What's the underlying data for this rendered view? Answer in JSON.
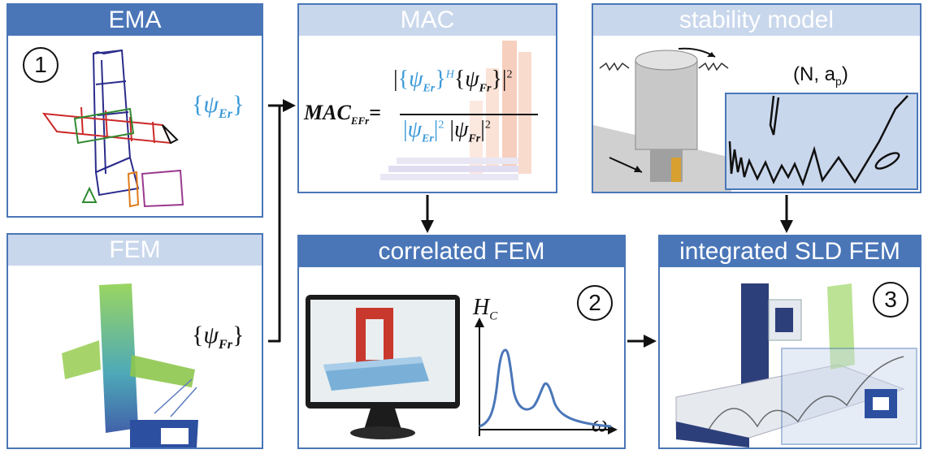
{
  "panels": {
    "ema": {
      "title": "EMA",
      "step": "1"
    },
    "fem": {
      "title": "FEM"
    },
    "mac": {
      "title": "MAC"
    },
    "stability": {
      "title": "stability model",
      "coords": "(N, a",
      "coords_sub": "p",
      "coords_end": ")"
    },
    "correlated": {
      "title": "correlated FEM",
      "step": "2"
    },
    "integrated": {
      "title": "integrated SLD FEM",
      "step": "3"
    }
  },
  "labels": {
    "psi_er": {
      "open": "{",
      "sym": "ψ",
      "sub": "Er",
      "close": "}"
    },
    "psi_fr": {
      "open": "{",
      "sym": "ψ",
      "sub": "Fr",
      "close": "}"
    }
  },
  "formula": {
    "lhs": "MAC",
    "lhs_sub": "EFr",
    "eq": "=",
    "num_psi": "ψ",
    "num_er": "Er",
    "num_fr": "Fr",
    "exp_h": "H",
    "exp_2": "2",
    "den_psi": "ψ"
  },
  "frf": {
    "y_label": "H",
    "y_sub": "C",
    "x_label": "ω"
  },
  "colors": {
    "accent": "#4a76b8",
    "header_light": "#c9d7ec",
    "psi_blue": "#3a9ad9"
  }
}
